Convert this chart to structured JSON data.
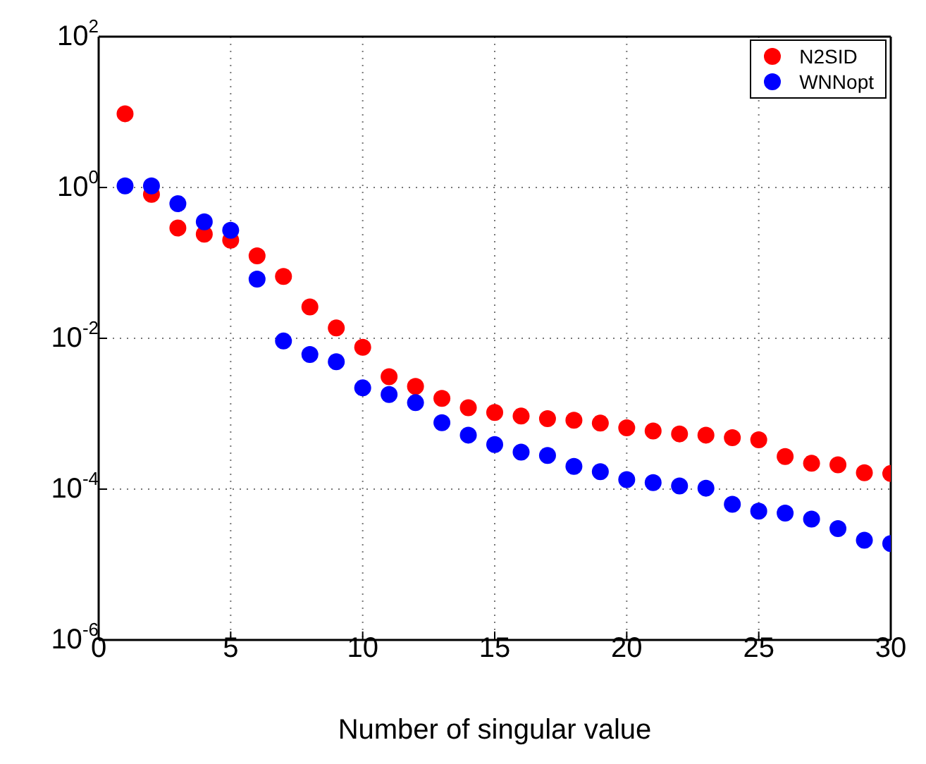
{
  "chart_data": {
    "type": "scatter",
    "xlabel": "Number of singular value",
    "x": [
      1,
      2,
      3,
      4,
      5,
      6,
      7,
      8,
      9,
      10,
      11,
      12,
      13,
      14,
      15,
      16,
      17,
      18,
      19,
      20,
      21,
      22,
      23,
      24,
      25,
      26,
      27,
      28,
      29,
      30
    ],
    "series": [
      {
        "name": "N2SID",
        "color": "#ff0000",
        "values": [
          9.5,
          0.81,
          0.29,
          0.24,
          0.2,
          0.124,
          0.066,
          0.026,
          0.0137,
          0.0076,
          0.0031,
          0.0023,
          0.0016,
          0.0012,
          0.00104,
          0.00093,
          0.00086,
          0.00082,
          0.00075,
          0.00065,
          0.00059,
          0.00054,
          0.00052,
          0.00048,
          0.00045,
          0.00027,
          0.00022,
          0.00021,
          0.000165,
          0.000161
        ]
      },
      {
        "name": "WNNopt",
        "color": "#0000ff",
        "values": [
          1.05,
          1.05,
          0.61,
          0.35,
          0.27,
          0.061,
          0.0092,
          0.0061,
          0.0049,
          0.0022,
          0.0018,
          0.0014,
          0.00076,
          0.00052,
          0.00039,
          0.00031,
          0.00028,
          0.0002,
          0.00017,
          0.000134,
          0.000122,
          0.00011,
          0.000103,
          6.3e-05,
          5.1e-05,
          4.8e-05,
          4e-05,
          3e-05,
          2.1e-05,
          1.9e-05
        ]
      }
    ],
    "xlim": [
      0,
      30
    ],
    "xticks": [
      0,
      5,
      10,
      15,
      20,
      25,
      30
    ],
    "ylim": [
      1e-06,
      100
    ],
    "yticks": [
      {
        "value": 100,
        "label": "10$^{2}$"
      },
      {
        "value": 1,
        "label": "10$^{0}$"
      },
      {
        "value": 0.01,
        "label": "10$^{-2}$"
      },
      {
        "value": 0.0001,
        "label": "10$^{-4}$"
      },
      {
        "value": 1e-06,
        "label": "10$^{-6}$"
      }
    ],
    "log": "y",
    "grid": true,
    "legend": "top right",
    "marker": "circle"
  }
}
